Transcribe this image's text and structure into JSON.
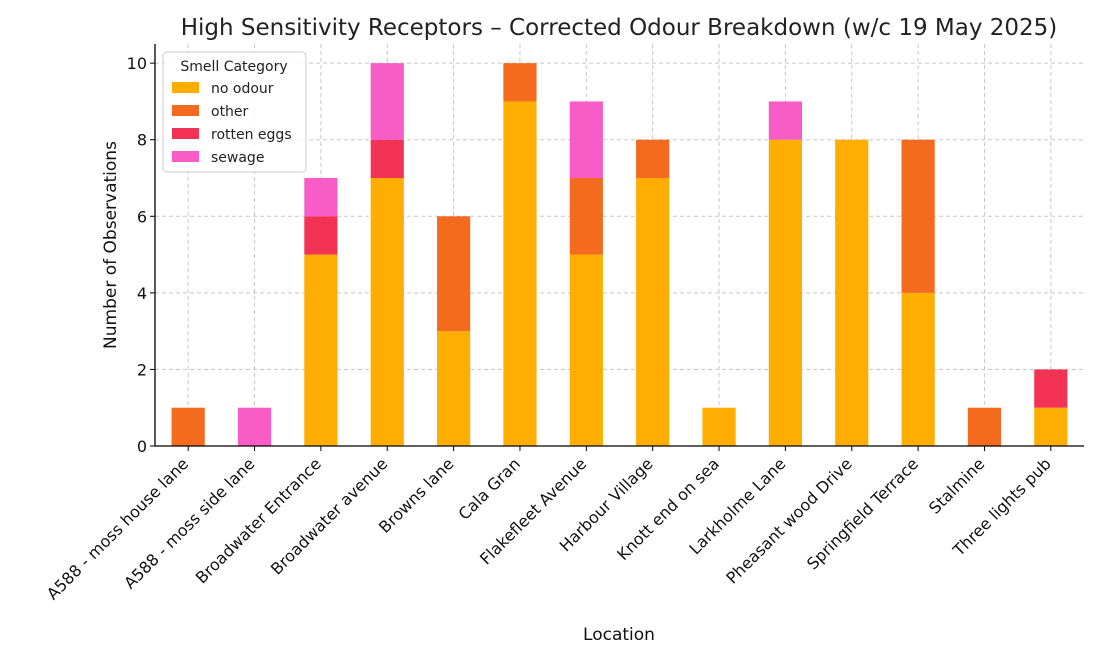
{
  "chart_data": {
    "type": "bar",
    "stacked": true,
    "title": "High Sensitivity Receptors – Corrected Odour Breakdown (w/c 19 May 2025)",
    "xlabel": "Location",
    "ylabel": "Number of Observations",
    "ylim": [
      0,
      10.5
    ],
    "yticks": [
      "0",
      "2",
      "4",
      "6",
      "8",
      "10"
    ],
    "grid": true,
    "legend": {
      "title": "Smell Category",
      "placement": "top-left"
    },
    "categories": [
      "A588 - moss house lane",
      "A588 - moss side lane",
      "Broadwater Entrance",
      "Broadwater avenue",
      "Browns lane",
      "Cala Gran",
      "Flakefleet Avenue",
      "Harbour Village",
      "Knott end on sea",
      "Larkholme Lane",
      "Pheasant wood Drive",
      "Springfield Terrace",
      "Stalmine",
      "Three lights pub"
    ],
    "series": [
      {
        "name": "no odour",
        "color": "#FFAE00",
        "values": [
          0,
          0,
          5,
          7,
          3,
          9,
          5,
          7,
          1,
          8,
          8,
          4,
          0,
          1
        ]
      },
      {
        "name": "other",
        "color": "#F46B1F",
        "values": [
          1,
          0,
          0,
          0,
          3,
          1,
          2,
          1,
          0,
          0,
          0,
          4,
          1,
          0
        ]
      },
      {
        "name": "rotten eggs",
        "color": "#F33355",
        "values": [
          0,
          0,
          1,
          1,
          0,
          0,
          0,
          0,
          0,
          0,
          0,
          0,
          0,
          1
        ]
      },
      {
        "name": "sewage",
        "color": "#F95CC7",
        "values": [
          0,
          1,
          1,
          2,
          0,
          0,
          2,
          0,
          0,
          1,
          0,
          0,
          0,
          0
        ]
      }
    ]
  }
}
